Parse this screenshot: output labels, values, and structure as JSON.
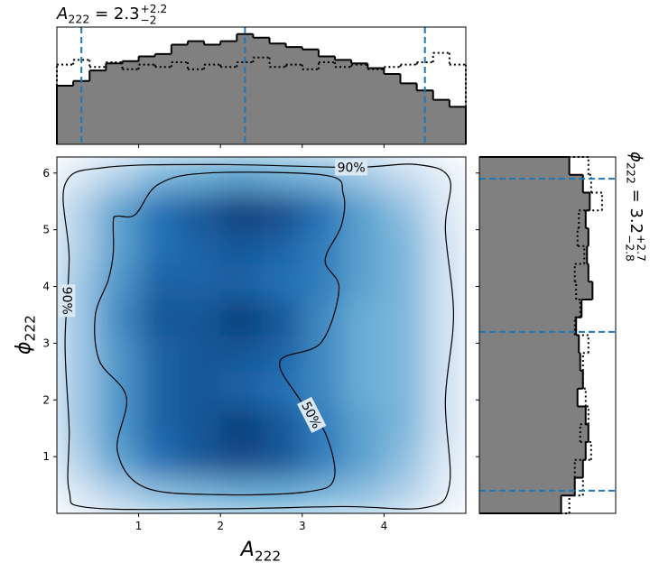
{
  "chart_data": {
    "type": "corner",
    "top_title": {
      "symbol": "A",
      "sub": "222",
      "main": " = 2.3",
      "sup": "+2.2",
      "inf": "−2"
    },
    "right_title": {
      "symbol": "ϕ",
      "sub": "222",
      "main": " = 3.2",
      "sup": "+2.7",
      "inf": "−2.8"
    },
    "xlabel": {
      "symbol": "A",
      "sub": "222"
    },
    "ylabel": {
      "symbol": "ϕ",
      "sub": "222"
    },
    "xlim": [
      0,
      5
    ],
    "xticks": [
      1,
      2,
      3,
      4
    ],
    "ylim": [
      0,
      6.283
    ],
    "yticks": [
      1,
      2,
      3,
      4,
      5,
      6
    ],
    "x_quantiles": [
      0.3,
      2.3,
      4.5
    ],
    "y_quantiles": [
      0.4,
      3.2,
      5.9
    ],
    "quantile_color": "#1f77b4",
    "density": {
      "x_edges": [
        0,
        0.5,
        1,
        1.5,
        2,
        2.5,
        3,
        3.5,
        4,
        4.5,
        5
      ],
      "y_edges": [
        0,
        0.628,
        1.257,
        1.885,
        2.513,
        3.142,
        3.77,
        4.398,
        5.027,
        5.655,
        6.283
      ],
      "values": [
        [
          0.15,
          0.3,
          0.4,
          0.45,
          0.5,
          0.5,
          0.45,
          0.4,
          0.3,
          0.1
        ],
        [
          0.3,
          0.55,
          0.75,
          0.85,
          0.9,
          0.85,
          0.7,
          0.55,
          0.4,
          0.15
        ],
        [
          0.35,
          0.6,
          0.8,
          0.85,
          0.95,
          0.85,
          0.7,
          0.55,
          0.45,
          0.2
        ],
        [
          0.35,
          0.6,
          0.8,
          0.85,
          0.8,
          0.75,
          0.65,
          0.5,
          0.45,
          0.2
        ],
        [
          0.35,
          0.6,
          0.8,
          0.85,
          0.85,
          0.8,
          0.65,
          0.5,
          0.45,
          0.2
        ],
        [
          0.35,
          0.65,
          0.85,
          0.85,
          0.95,
          0.85,
          0.65,
          0.5,
          0.45,
          0.2
        ],
        [
          0.35,
          0.6,
          0.8,
          0.8,
          0.8,
          0.75,
          0.7,
          0.55,
          0.45,
          0.2
        ],
        [
          0.3,
          0.55,
          0.75,
          0.8,
          0.85,
          0.8,
          0.7,
          0.55,
          0.45,
          0.2
        ],
        [
          0.3,
          0.55,
          0.75,
          0.85,
          0.95,
          0.9,
          0.75,
          0.55,
          0.4,
          0.15
        ],
        [
          0.15,
          0.3,
          0.45,
          0.5,
          0.55,
          0.5,
          0.45,
          0.35,
          0.25,
          0.1
        ]
      ]
    },
    "contours": [
      {
        "label": "50%",
        "x": [
          0.74,
          0.96,
          1.24,
          1.84,
          3.28,
          3.5,
          3.48,
          3.28,
          3.45,
          3.23,
          2.73,
          2.95,
          3.28,
          3.39,
          3.06,
          1.96,
          1.07,
          0.74,
          0.85,
          0.52,
          0.47,
          0.63,
          0.69,
          0.69
        ],
        "y": [
          5.24,
          5.27,
          5.8,
          6.0,
          5.96,
          5.64,
          5.08,
          4.46,
          3.96,
          3.01,
          2.69,
          2.05,
          1.42,
          0.62,
          0.38,
          0.33,
          0.46,
          1.1,
          2.05,
          2.69,
          3.49,
          4.12,
          4.6,
          5.16
        ]
      },
      {
        "label": "90%",
        "x": [
          0.4,
          2,
          3.5,
          4.5,
          4.8,
          4.75,
          4.85,
          4.75,
          4.8,
          4.4,
          3.6,
          2,
          0.6,
          0.1,
          0.15,
          0.1,
          0.15,
          0.15
        ],
        "y": [
          0.1,
          0.08,
          0.12,
          0.1,
          0.5,
          2,
          3.5,
          5,
          5.9,
          6.15,
          6.1,
          6.15,
          6.1,
          5.8,
          4.5,
          3,
          1.5,
          0.4
        ]
      }
    ],
    "top_hist": {
      "bins": [
        0,
        0.2,
        0.4,
        0.6,
        0.8,
        1,
        1.2,
        1.4,
        1.6,
        1.8,
        2,
        2.2,
        2.4,
        2.6,
        2.8,
        3,
        3.2,
        3.4,
        3.6,
        3.8,
        4,
        4.2,
        4.4,
        4.6,
        4.8,
        5
      ],
      "count_lim": [
        0,
        1
      ],
      "series": [
        {
          "style": "solid",
          "color": "#808080",
          "values": [
            0.5,
            0.54,
            0.63,
            0.69,
            0.71,
            0.75,
            0.77,
            0.85,
            0.88,
            0.85,
            0.88,
            0.94,
            0.91,
            0.86,
            0.83,
            0.81,
            0.75,
            0.72,
            0.69,
            0.65,
            0.6,
            0.52,
            0.46,
            0.38,
            0.32
          ]
        },
        {
          "style": "dotted",
          "values": [
            0.68,
            0.72,
            0.66,
            0.7,
            0.64,
            0.68,
            0.66,
            0.7,
            0.64,
            0.68,
            0.66,
            0.7,
            0.74,
            0.66,
            0.68,
            0.64,
            0.7,
            0.66,
            0.68,
            0.64,
            0.66,
            0.68,
            0.7,
            0.78,
            0.68
          ]
        }
      ]
    },
    "right_hist": {
      "bins": [
        0,
        0.314,
        0.628,
        0.942,
        1.257,
        1.571,
        1.885,
        2.199,
        2.513,
        2.827,
        3.142,
        3.456,
        3.77,
        4.084,
        4.398,
        4.712,
        5.027,
        5.341,
        5.655,
        5.969,
        6.283
      ],
      "count_lim": [
        0,
        1
      ],
      "series": [
        {
          "style": "solid",
          "color": "#808080",
          "values": [
            0.6,
            0.7,
            0.76,
            0.78,
            0.8,
            0.78,
            0.72,
            0.76,
            0.74,
            0.73,
            0.71,
            0.75,
            0.83,
            0.8,
            0.79,
            0.8,
            0.78,
            0.81,
            0.76,
            0.66
          ]
        },
        {
          "style": "dotted",
          "values": [
            0.66,
            0.76,
            0.7,
            0.82,
            0.74,
            0.8,
            0.78,
            0.76,
            0.76,
            0.8,
            0.7,
            0.74,
            0.71,
            0.7,
            0.77,
            0.72,
            0.73,
            0.9,
            0.82,
            0.8
          ]
        }
      ]
    }
  }
}
